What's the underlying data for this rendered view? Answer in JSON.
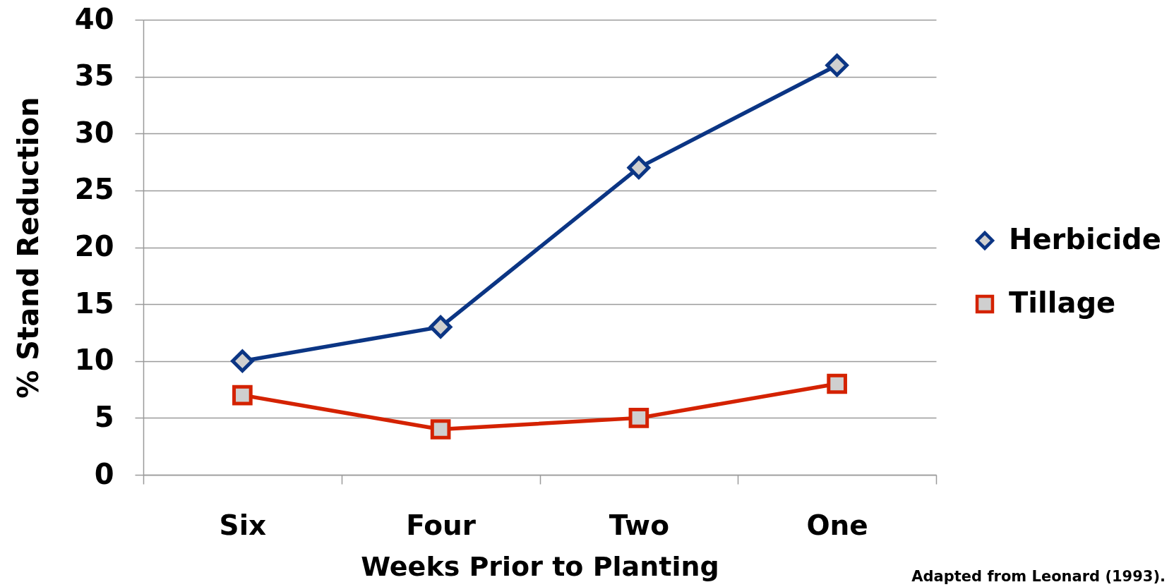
{
  "chart_data": {
    "type": "line",
    "xlabel": "Weeks Prior to Planting",
    "ylabel": "% Stand Reduction",
    "categories": [
      "Six",
      "Four",
      "Two",
      "One"
    ],
    "series": [
      {
        "name": "Herbicide",
        "color": "#0b3584",
        "marker": "diamond",
        "values": [
          10,
          13,
          27,
          36
        ]
      },
      {
        "name": "Tillage",
        "color": "#d42200",
        "marker": "square",
        "values": [
          7,
          4,
          5,
          8
        ]
      }
    ],
    "ylim": [
      0,
      40
    ],
    "yticks": [
      0,
      5,
      10,
      15,
      20,
      25,
      30,
      35,
      40
    ],
    "grid": "y",
    "legend": "right",
    "line_style": "solid",
    "annotations": [
      "Adapted from Leonard (1993)."
    ]
  }
}
